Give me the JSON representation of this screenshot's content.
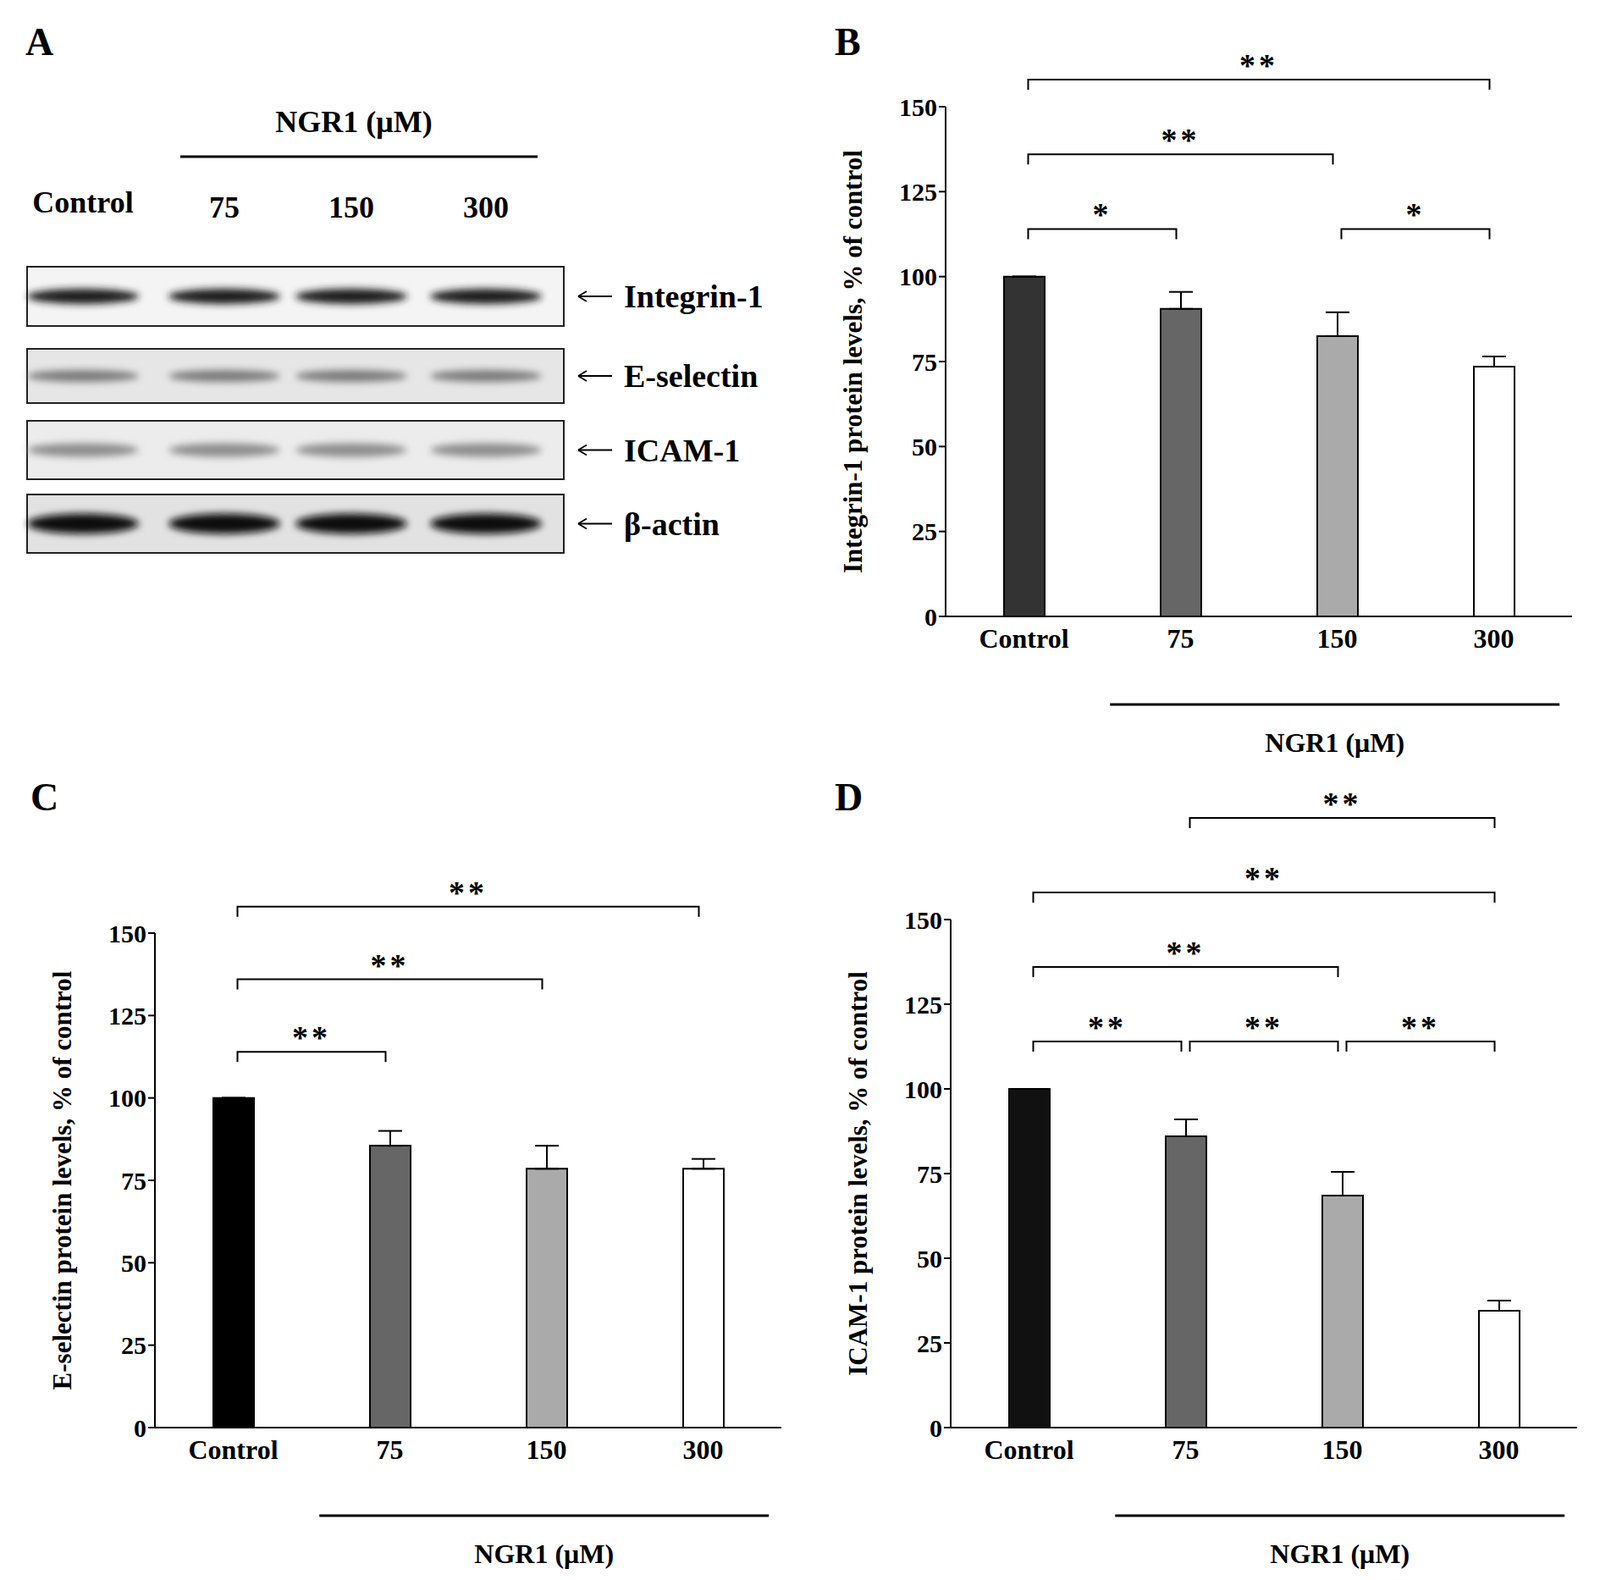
{
  "blot": {
    "panel": "A",
    "treatment": "NGR1 (μM)",
    "lanes": [
      "Control",
      "75",
      "150",
      "300"
    ],
    "proteins": [
      "Integrin-1",
      "E-selectin",
      "ICAM-1",
      "β-actin"
    ]
  },
  "chart_data": [
    {
      "type": "bar",
      "panel": "B",
      "categories": [
        "Control",
        "75",
        "150",
        "300"
      ],
      "values": [
        100,
        90.5,
        82.5,
        73.5
      ],
      "errors": [
        0,
        5,
        7,
        3
      ],
      "colors": [
        "#333333",
        "#666666",
        "#aaaaaa",
        "#ffffff"
      ],
      "ylabel": "Integrin-1 protein levels, % of control",
      "xlabel": "NGR1 (μM)",
      "ylim": [
        0,
        150
      ],
      "yticks": [
        0,
        25,
        50,
        75,
        100,
        125,
        150
      ],
      "annotations": [
        {
          "from": "Control",
          "to": "75",
          "text": "*"
        },
        {
          "from": "150",
          "to": "300",
          "text": "*"
        },
        {
          "from": "Control",
          "to": "150",
          "text": "**"
        },
        {
          "from": "Control",
          "to": "300",
          "text": "**"
        }
      ]
    },
    {
      "type": "bar",
      "panel": "C",
      "categories": [
        "Control",
        "75",
        "150",
        "300"
      ],
      "values": [
        100,
        85.5,
        78.5,
        78.5
      ],
      "errors": [
        0,
        4.5,
        7,
        3
      ],
      "colors": [
        "#000000",
        "#666666",
        "#aaaaaa",
        "#ffffff"
      ],
      "ylabel": "E-selectin protein levels, % of control",
      "xlabel": "NGR1 (μM)",
      "ylim": [
        0,
        150
      ],
      "yticks": [
        0,
        25,
        50,
        75,
        100,
        125,
        150
      ],
      "annotations": [
        {
          "from": "Control",
          "to": "75",
          "text": "**"
        },
        {
          "from": "Control",
          "to": "150",
          "text": "**"
        },
        {
          "from": "Control",
          "to": "300",
          "text": "**"
        }
      ]
    },
    {
      "type": "bar",
      "panel": "D",
      "categories": [
        "Control",
        "75",
        "150",
        "300"
      ],
      "values": [
        100,
        86,
        68.5,
        34.5
      ],
      "errors": [
        0,
        5,
        7,
        3
      ],
      "colors": [
        "#111111",
        "#666666",
        "#aaaaaa",
        "#ffffff"
      ],
      "ylabel": "ICAM-1 protein levels, % of control",
      "xlabel": "NGR1 (μM)",
      "ylim": [
        0,
        150
      ],
      "yticks": [
        0,
        25,
        50,
        75,
        100,
        125,
        150
      ],
      "annotations": [
        {
          "from": "Control",
          "to": "75",
          "text": "**"
        },
        {
          "from": "75",
          "to": "150",
          "text": "**"
        },
        {
          "from": "150",
          "to": "300",
          "text": "**"
        },
        {
          "from": "Control",
          "to": "150",
          "text": "**"
        },
        {
          "from": "Control",
          "to": "300",
          "text": "**"
        },
        {
          "from": "75",
          "to": "300",
          "text": "**"
        }
      ]
    }
  ]
}
